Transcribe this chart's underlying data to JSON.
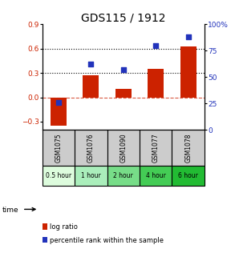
{
  "title": "GDS115 / 1912",
  "samples": [
    "GSM1075",
    "GSM1076",
    "GSM1090",
    "GSM1077",
    "GSM1078"
  ],
  "time_labels": [
    "0.5 hour",
    "1 hour",
    "2 hour",
    "4 hour",
    "6 hour"
  ],
  "log_ratios": [
    -0.35,
    0.27,
    0.1,
    0.35,
    0.63
  ],
  "percentile_ranks": [
    26,
    62,
    57,
    80,
    88
  ],
  "left_ylim": [
    -0.4,
    0.9
  ],
  "right_ylim": [
    0,
    100
  ],
  "left_yticks": [
    -0.3,
    0.0,
    0.3,
    0.6,
    0.9
  ],
  "right_yticks": [
    0,
    25,
    50,
    75,
    100
  ],
  "hlines": [
    0.3,
    0.6
  ],
  "bar_color": "#cc2200",
  "scatter_color": "#2233bb",
  "time_colors": [
    "#ddfcdd",
    "#aaeebb",
    "#77dd88",
    "#44cc55",
    "#22bb33"
  ],
  "sample_bg_color": "#cccccc",
  "legend_bar_label": "log ratio",
  "legend_scatter_label": "percentile rank within the sample",
  "title_fontsize": 10,
  "tick_fontsize": 6.5,
  "sample_fontsize": 5.5,
  "time_fontsize": 5.5
}
